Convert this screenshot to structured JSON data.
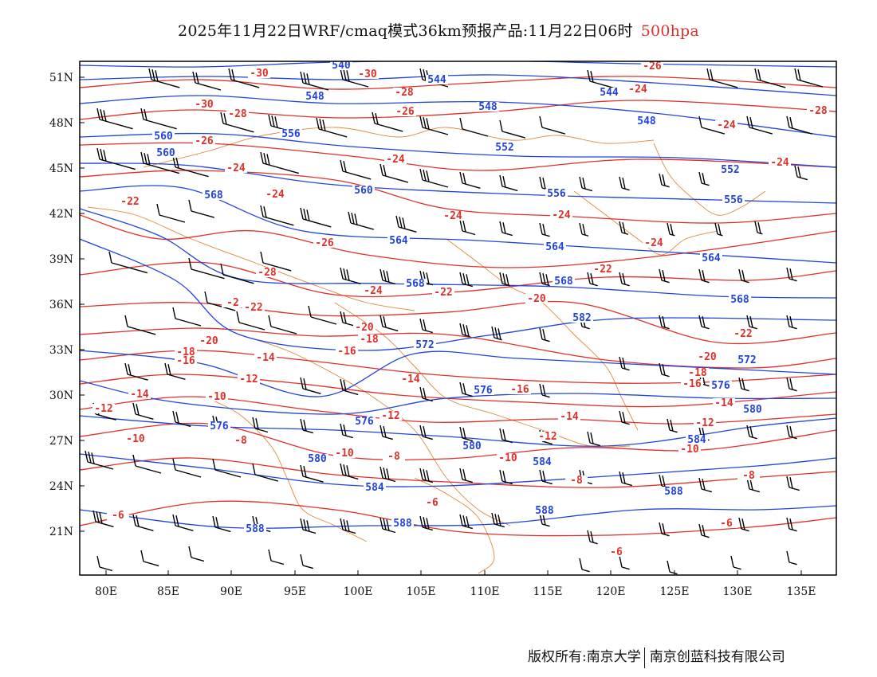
{
  "title": {
    "main": "2025年11月22日WRF/cmaq模式36km预报产品:11月22日06时",
    "level": "500hpa"
  },
  "axes": {
    "lat_labels": [
      "51N",
      "48N",
      "45N",
      "42N",
      "39N",
      "36N",
      "33N",
      "30N",
      "27N",
      "24N",
      "21N"
    ],
    "lon_labels": [
      "80E",
      "85E",
      "90E",
      "95E",
      "100E",
      "105E",
      "110E",
      "115E",
      "120E",
      "125E",
      "130E",
      "135E"
    ]
  },
  "colors": {
    "geopotential": "#2244dd",
    "temperature": "#e0302a",
    "boundary": "#e08a3a",
    "wind": "#000000"
  },
  "chart_data": {
    "type": "weather-map",
    "level": "500hpa",
    "lon_range": [
      78,
      138
    ],
    "lat_range": [
      18,
      52
    ],
    "geopotential_dagpm_labels": [
      "540",
      "544",
      "548",
      "552",
      "556",
      "560",
      "564",
      "568",
      "572",
      "576",
      "580",
      "584",
      "588"
    ],
    "temperature_c_labels": [
      "-30",
      "-28",
      "-26",
      "-24",
      "-22",
      "-20",
      "-18",
      "-16",
      "-14",
      "-12",
      "-10",
      "-8",
      "-6"
    ]
  },
  "footer": {
    "copyright": "版权所有:南京大学",
    "company": "南京创蓝科技有限公司"
  }
}
